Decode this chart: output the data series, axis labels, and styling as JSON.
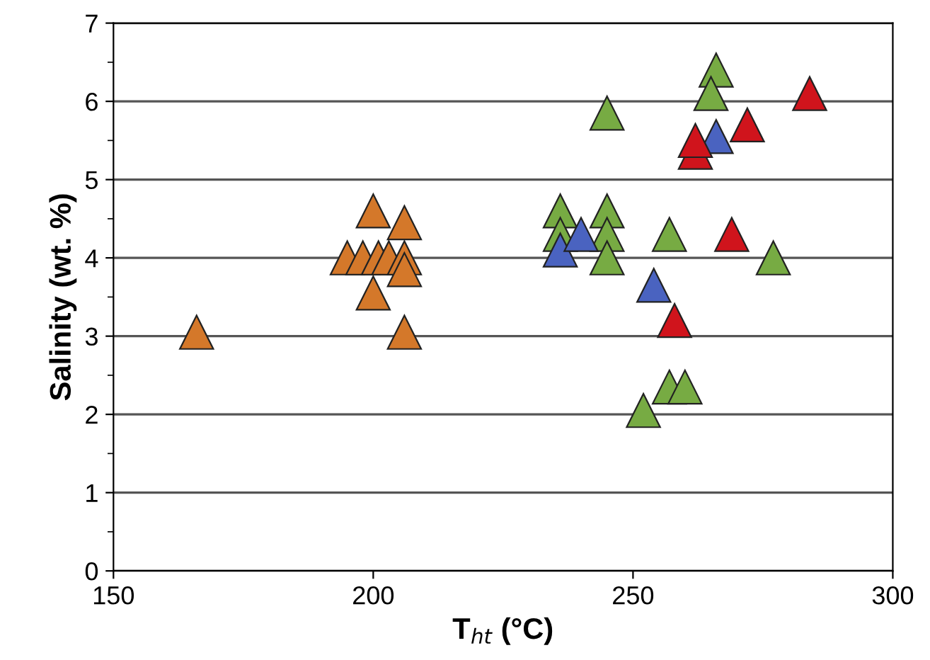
{
  "chart_data": {
    "type": "scatter",
    "xlabel": "T$_{ht}$ (°C)",
    "ylabel": "Salinity (wt. %)",
    "xlim": [
      150,
      300
    ],
    "xticks": [
      150,
      200,
      250,
      300
    ],
    "ylim": [
      0,
      7
    ],
    "yticks": [
      0,
      1,
      2,
      3,
      4,
      5,
      6,
      7
    ],
    "grid": "y",
    "marker": "triangle",
    "series": [
      {
        "color": "#d4782a",
        "x": [
          166,
          200,
          206,
          195,
          198,
          201,
          203,
          206,
          206,
          200,
          206
        ],
        "values": [
          3.05,
          4.6,
          4.45,
          4.0,
          4.0,
          4.0,
          4.0,
          4.0,
          3.85,
          3.55,
          3.05
        ]
      },
      {
        "color": "#77ab43",
        "x": [
          236,
          236,
          245,
          245,
          245,
          245,
          257,
          277,
          266,
          265,
          252,
          257,
          260
        ],
        "values": [
          4.6,
          4.3,
          4.6,
          4.3,
          4.0,
          5.85,
          4.3,
          4.0,
          6.4,
          6.1,
          2.05,
          2.35,
          2.35
        ]
      },
      {
        "color": "#4a63c0",
        "x": [
          236,
          240,
          254,
          266
        ],
        "values": [
          4.1,
          4.3,
          3.65,
          5.55
        ]
      },
      {
        "color": "#d0141c",
        "x": [
          258,
          269,
          262,
          262,
          272,
          284
        ],
        "values": [
          3.2,
          4.3,
          5.35,
          5.5,
          5.7,
          6.1
        ]
      }
    ]
  }
}
